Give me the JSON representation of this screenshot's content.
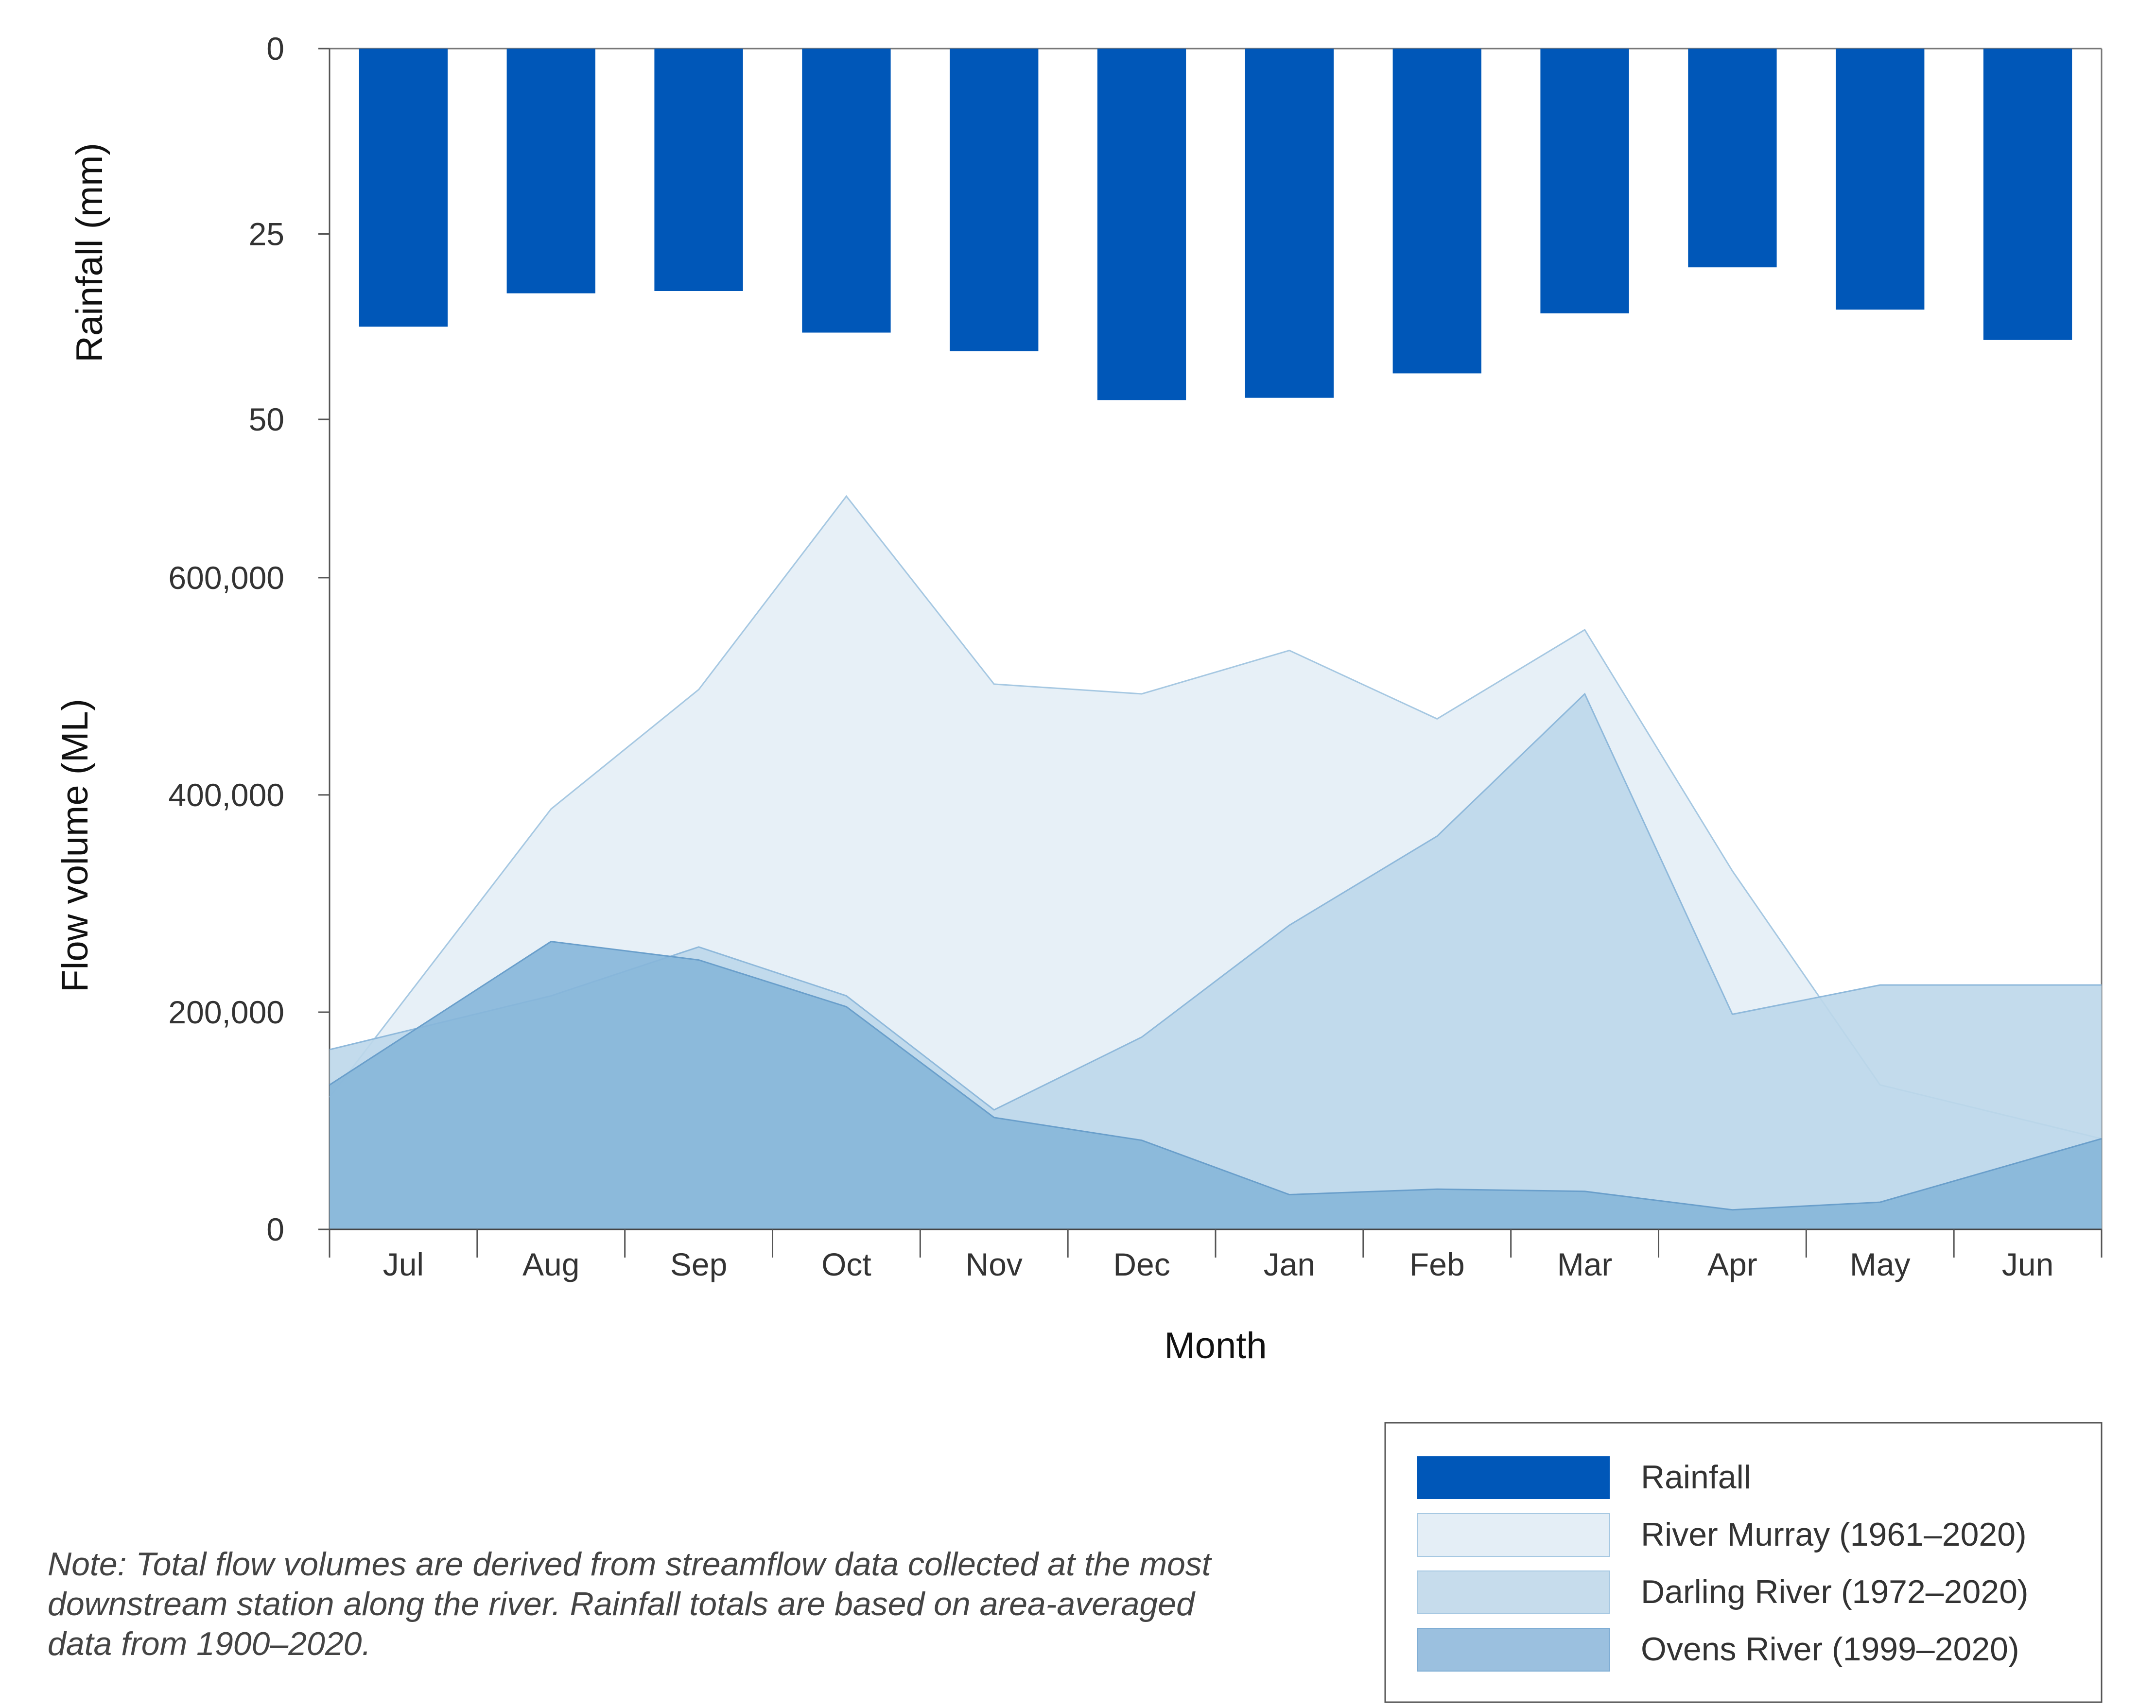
{
  "chart_data": {
    "type": "bar+area",
    "categories": [
      "Jul",
      "Aug",
      "Sep",
      "Oct",
      "Nov",
      "Dec",
      "Jan",
      "Feb",
      "Mar",
      "Apr",
      "May",
      "Jun"
    ],
    "xlabel": "Month",
    "rainfall": {
      "name": "Rainfall",
      "ylabel": "Rainfall (mm)",
      "yticks": [
        "0",
        "25",
        "50"
      ],
      "ylim": [
        0,
        50
      ],
      "values": [
        37.5,
        33,
        32.7,
        38.3,
        40.8,
        47.4,
        47.1,
        43.8,
        35.7,
        29.5,
        35.2,
        39.3
      ],
      "color": "#0057b8"
    },
    "flow": {
      "ylabel": "Flow volume (ML)",
      "yticks": [
        "0",
        "200,000",
        "400,000",
        "600,000"
      ],
      "ylim": [
        0,
        680000
      ],
      "series": [
        {
          "name": "River Murray (1961–2020)",
          "color": "#e4eef6",
          "stroke": "#a6c8e2",
          "values": [
            210000,
            387000,
            497000,
            675000,
            502000,
            493000,
            533000,
            470000,
            552000,
            330000,
            133000,
            100000
          ]
        },
        {
          "name": "Darling River (1972–2020)",
          "color": "#bdd7ea",
          "stroke": "#8fb9db",
          "values": [
            182000,
            215000,
            260000,
            215000,
            110000,
            177000,
            280000,
            362000,
            493000,
            198000,
            225000,
            225000
          ]
        },
        {
          "name": "Ovens River (1999–2020)",
          "color": "#86b6d9",
          "stroke": "#6a9fcb",
          "values": [
            177000,
            265000,
            248000,
            205000,
            103000,
            82000,
            32000,
            37000,
            35000,
            18000,
            25000,
            64000
          ]
        }
      ]
    }
  },
  "legend": {
    "rainfall": "Rainfall",
    "murray": "River Murray (1961–2020)",
    "darling": "Darling River (1972–2020)",
    "ovens": "Ovens River (1999–2020)"
  },
  "note": "Note: Total flow volumes are derived from streamflow data collected at the most downstream station along the river. Rainfall totals are based on area-averaged data from 1900–2020."
}
